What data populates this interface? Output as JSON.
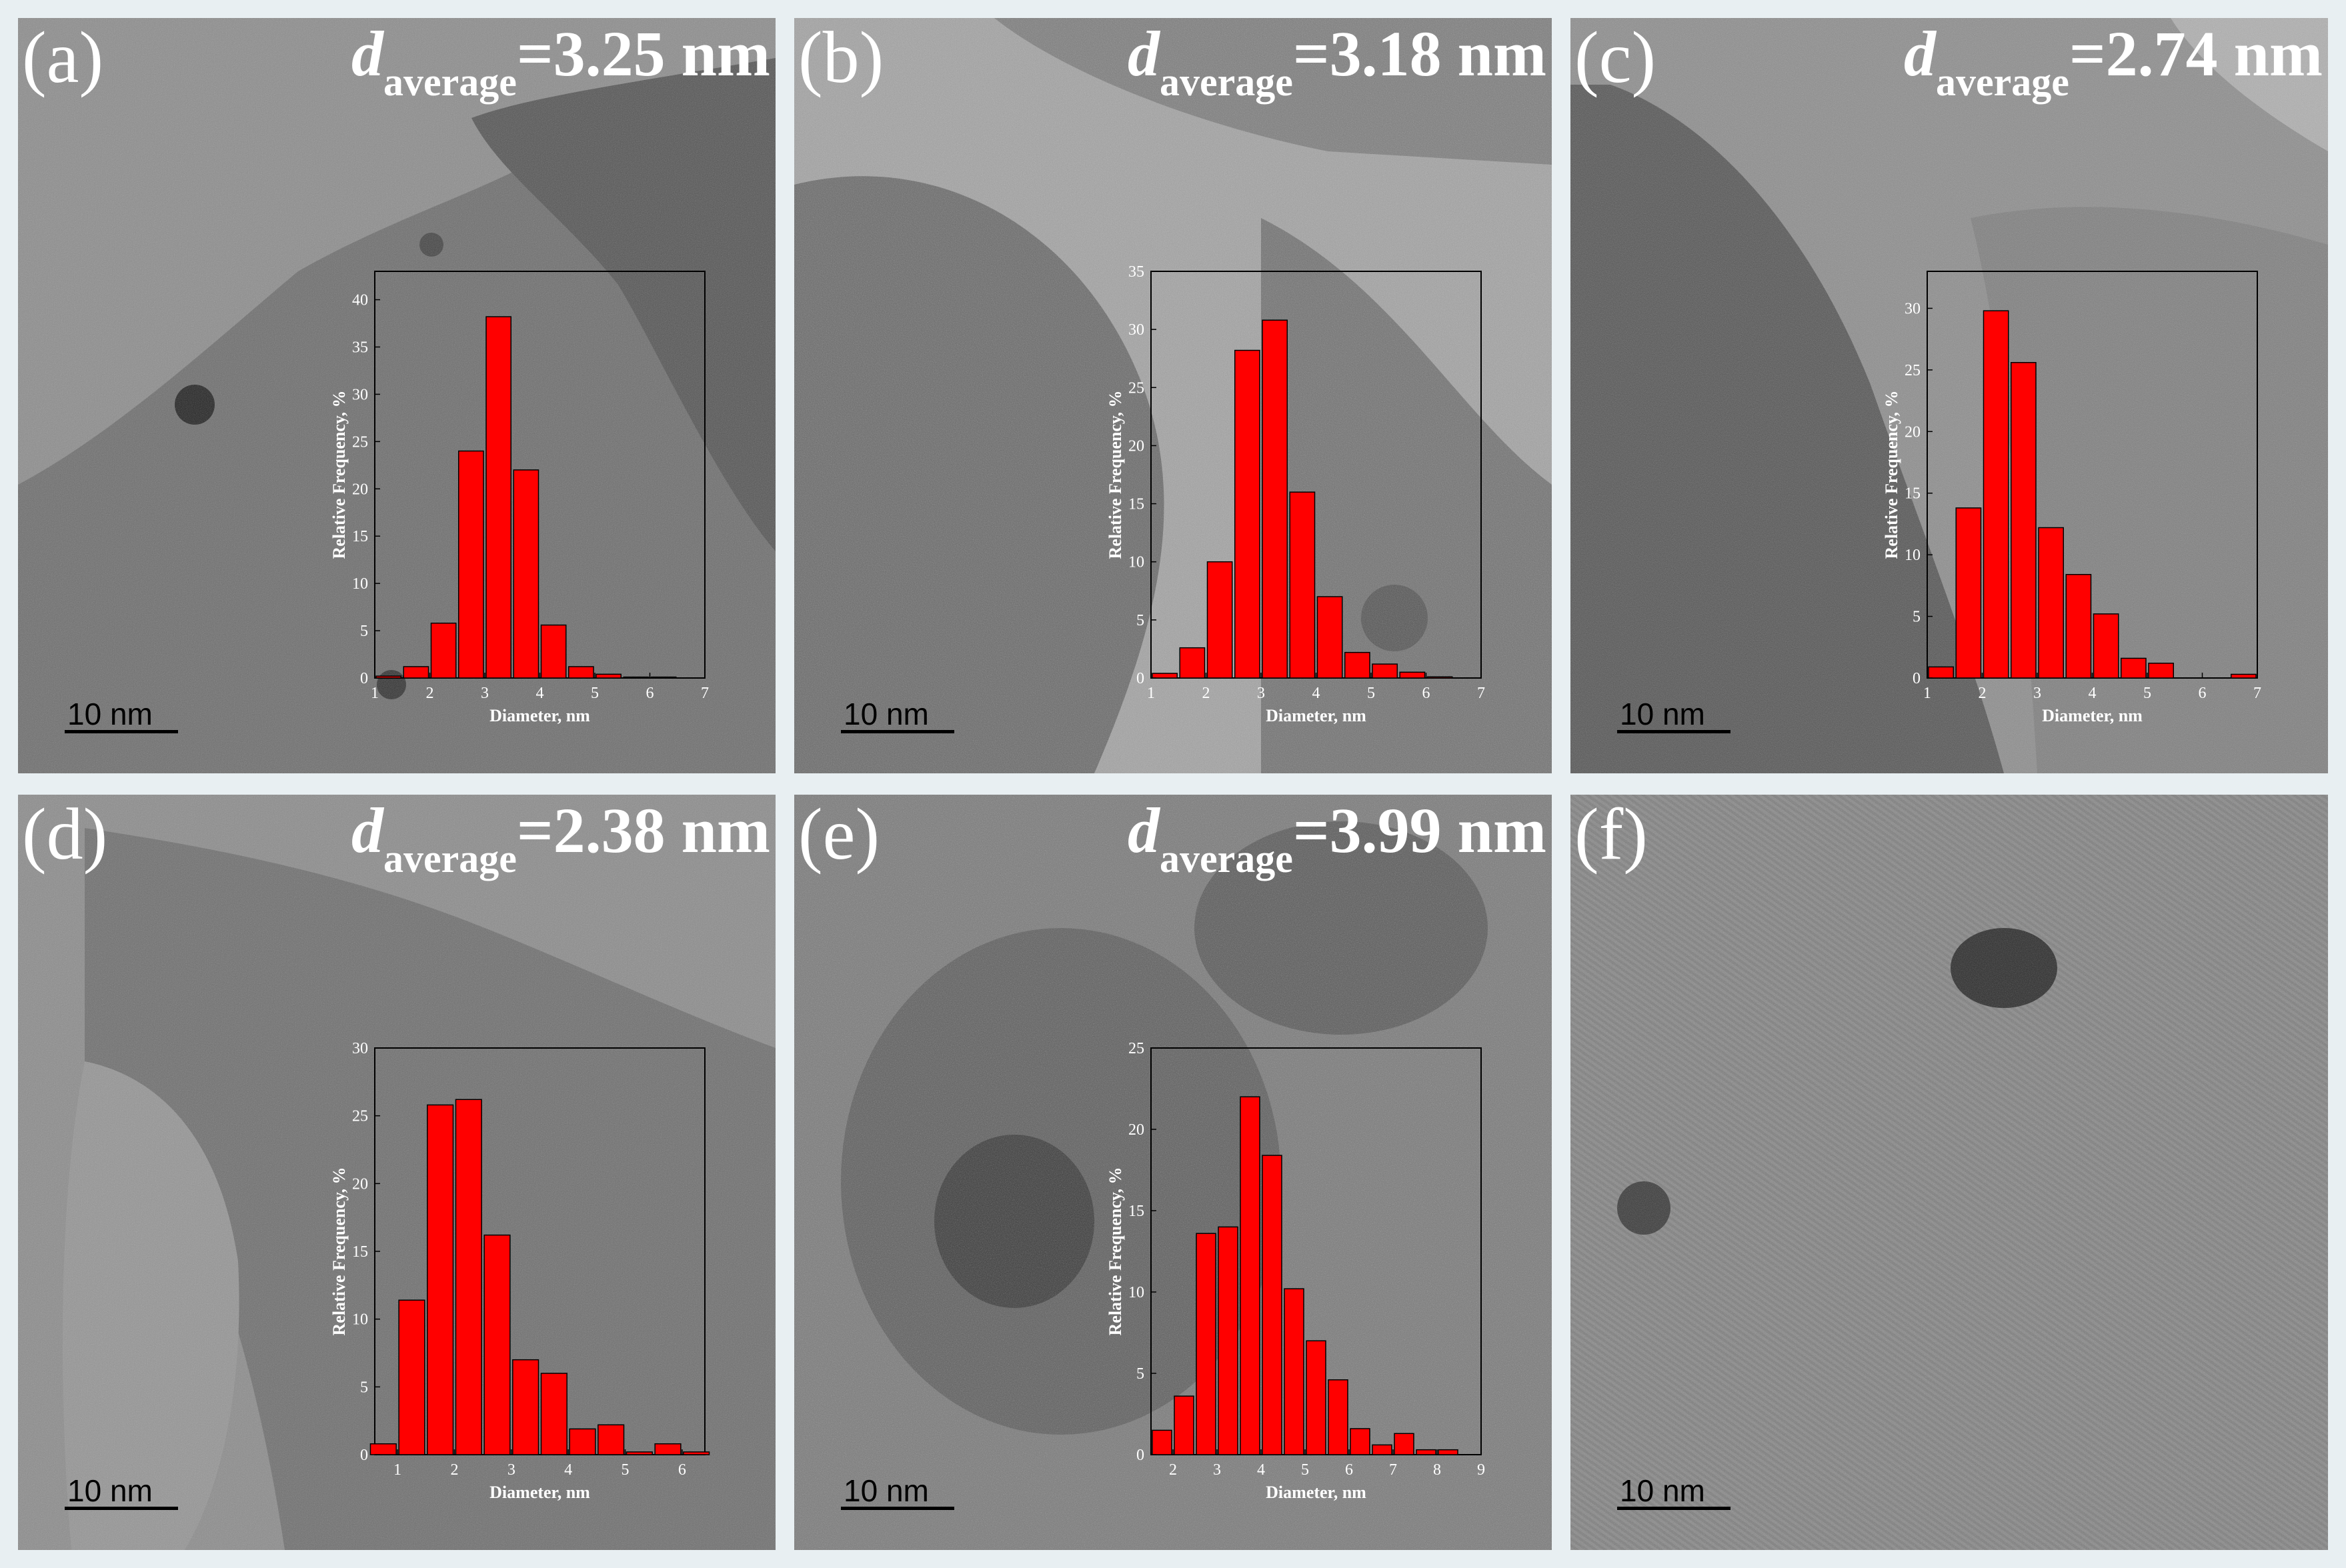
{
  "panels": [
    {
      "letter": "(a)",
      "d": "d",
      "sub": "average",
      "val": "=3.25 nm",
      "scale": "10  nm",
      "chart": {
        "xticks": [
          1,
          2,
          3,
          4,
          5,
          6,
          7
        ],
        "yticks": [
          0,
          5,
          10,
          15,
          20,
          25,
          30,
          35,
          40
        ],
        "xmin": 1,
        "xmax": 7,
        "ymax": 43,
        "x": [
          1.25,
          1.75,
          2.25,
          2.75,
          3.25,
          3.75,
          4.25,
          4.75,
          5.25,
          5.75,
          6.25,
          6.75
        ],
        "y": [
          0.2,
          1.2,
          5.8,
          24,
          38.2,
          22,
          5.6,
          1.2,
          0.4,
          0.1,
          0.1,
          0
        ]
      }
    },
    {
      "letter": "(b)",
      "d": "d",
      "sub": "average",
      "val": "=3.18 nm",
      "scale": "10  nm",
      "chart": {
        "xticks": [
          1,
          2,
          3,
          4,
          5,
          6,
          7
        ],
        "yticks": [
          0,
          5,
          10,
          15,
          20,
          25,
          30,
          35
        ],
        "xmin": 1,
        "xmax": 7,
        "ymax": 35,
        "x": [
          1.25,
          1.75,
          2.25,
          2.75,
          3.25,
          3.75,
          4.25,
          4.75,
          5.25,
          5.75,
          6.25,
          6.75
        ],
        "y": [
          0.4,
          2.6,
          10,
          28.2,
          30.8,
          16,
          7,
          2.2,
          1.2,
          0.5,
          0.1,
          0
        ]
      }
    },
    {
      "letter": "(c)",
      "d": "d",
      "sub": "average",
      "val": "=2.74 nm",
      "scale": "10  nm",
      "chart": {
        "xticks": [
          1,
          2,
          3,
          4,
          5,
          6,
          7
        ],
        "yticks": [
          0,
          5,
          10,
          15,
          20,
          25,
          30
        ],
        "xmin": 1,
        "xmax": 7,
        "ymax": 33,
        "x": [
          1.25,
          1.75,
          2.25,
          2.75,
          3.25,
          3.75,
          4.25,
          4.75,
          5.25,
          5.75,
          6.25,
          6.75
        ],
        "y": [
          0.9,
          13.8,
          29.8,
          25.6,
          12.2,
          8.4,
          5.2,
          1.6,
          1.2,
          0,
          0,
          0.3
        ]
      }
    },
    {
      "letter": "(d)",
      "d": "d",
      "sub": "average",
      "val": "=2.38 nm",
      "scale": "10  nm",
      "chart": {
        "xticks": [
          1,
          2,
          3,
          4,
          5,
          6
        ],
        "yticks": [
          0,
          5,
          10,
          15,
          20,
          25,
          30
        ],
        "xmin": 0.6,
        "xmax": 6.4,
        "ymax": 30,
        "x": [
          0.75,
          1.25,
          1.75,
          2.25,
          2.75,
          3.25,
          3.75,
          4.25,
          4.75,
          5.25,
          5.75,
          6.25
        ],
        "y": [
          0.8,
          11.4,
          25.8,
          26.2,
          16.2,
          7,
          6,
          1.9,
          2.2,
          0.2,
          0.8,
          0.2
        ]
      }
    },
    {
      "letter": "(e)",
      "d": "d",
      "sub": "average",
      "val": "=3.99 nm",
      "scale": "10  nm",
      "chart": {
        "xticks": [
          2,
          3,
          4,
          5,
          6,
          7,
          8,
          9
        ],
        "yticks": [
          0,
          5,
          10,
          15,
          20,
          25
        ],
        "xmin": 1.5,
        "xmax": 9,
        "ymax": 25,
        "x": [
          1.75,
          2.25,
          2.75,
          3.25,
          3.75,
          4.25,
          4.75,
          5.25,
          5.75,
          6.25,
          6.75,
          7.25,
          7.75,
          8.25,
          8.75
        ],
        "y": [
          1.5,
          3.6,
          13.6,
          14,
          22,
          18.4,
          10.2,
          7,
          4.6,
          1.6,
          0.6,
          1.3,
          0.3,
          0.3,
          0
        ]
      }
    },
    {
      "letter": "(f)",
      "scale": "10  nm"
    }
  ],
  "chart_common": {
    "xlabel": "Diameter, nm",
    "ylabel": "Relative Frequency, %",
    "bar_color": "#ff0000",
    "type": "bar"
  }
}
